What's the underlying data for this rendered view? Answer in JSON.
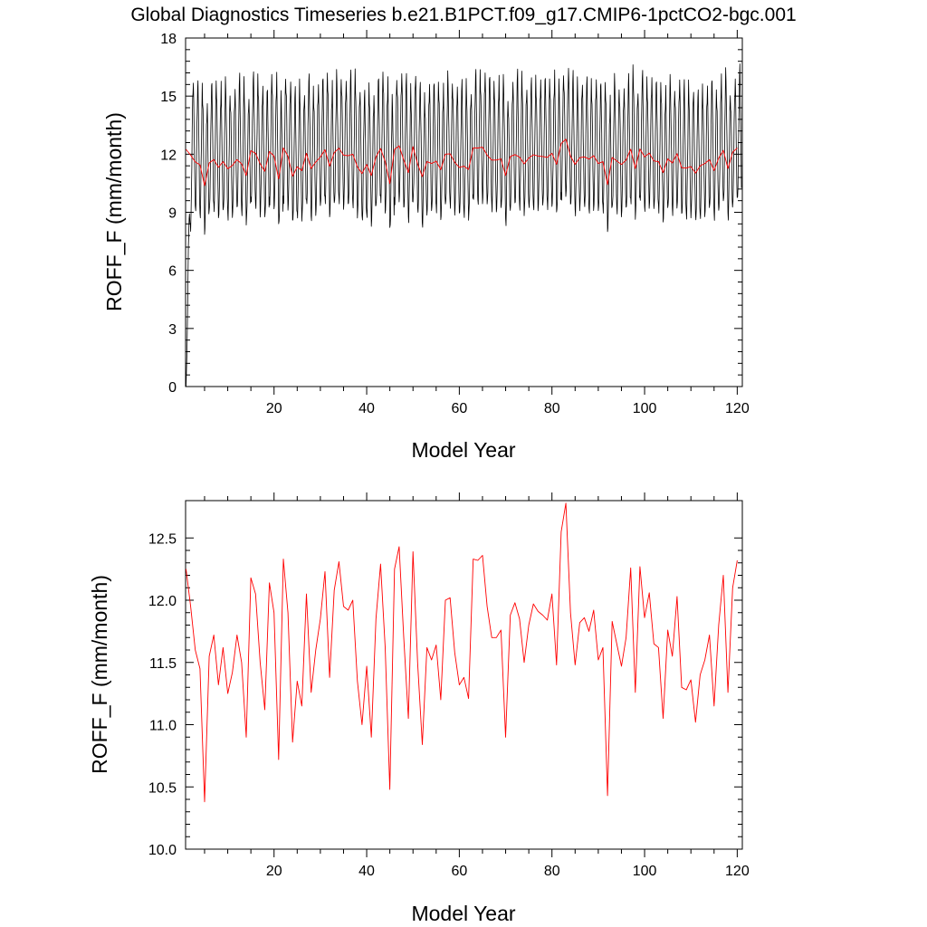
{
  "figure_title": "Global Diagnostics Timeseries b.e21.B1PCT.f09_g17.CMIP6-1pctCO2-bgc.001",
  "colors": {
    "monthly": "#000000",
    "annual": "#ff0000"
  },
  "chart_data": [
    {
      "type": "line",
      "title": "",
      "xlabel": "Model Year",
      "ylabel": "ROFF_F (mm/month)",
      "xlim": [
        0.9,
        121.1
      ],
      "ylim": [
        0,
        18
      ],
      "xticks": [
        20,
        40,
        60,
        80,
        100,
        120
      ],
      "yticks": [
        0,
        3,
        6,
        9,
        12,
        15,
        18
      ],
      "xtick_labels": [
        "20",
        "40",
        "60",
        "80",
        "100",
        "120"
      ],
      "ytick_labels": [
        "0",
        "3",
        "6",
        "9",
        "12",
        "15",
        "18"
      ],
      "grid": false,
      "series": [
        {
          "kind": "monthly",
          "x_start": 1.0,
          "x_step": 0.08333,
          "months_per_year": 12,
          "y_start": 0.0,
          "seasonal_low": 8.9,
          "seasonal_high": 15.2,
          "ramp_months": 22,
          "color": "#000000"
        },
        {
          "kind": "annual",
          "x_start": 1.0,
          "x_step": 1.0,
          "color": "#ff0000",
          "values_ref": "annual_mean"
        }
      ]
    },
    {
      "type": "line",
      "title": "",
      "xlabel": "Model Year",
      "ylabel": "ROFF_F (mm/month)",
      "xlim": [
        0.9,
        121.1
      ],
      "ylim": [
        10.0,
        12.8
      ],
      "xticks": [
        20,
        40,
        60,
        80,
        100,
        120
      ],
      "yticks": [
        10.0,
        10.5,
        11.0,
        11.5,
        12.0,
        12.5
      ],
      "xtick_labels": [
        "20",
        "40",
        "60",
        "80",
        "100",
        "120"
      ],
      "ytick_labels": [
        "10.0",
        "10.5",
        "11.0",
        "11.5",
        "12.0",
        "12.5"
      ],
      "grid": false,
      "series": [
        {
          "kind": "annual",
          "x_start": 1.0,
          "x_step": 1.0,
          "color": "#ff0000",
          "values_ref": "annual_mean"
        }
      ]
    }
  ],
  "annual_mean": [
    12.25,
    11.95,
    11.6,
    11.45,
    10.38,
    11.55,
    11.72,
    11.32,
    11.62,
    11.25,
    11.42,
    11.72,
    11.5,
    10.9,
    12.18,
    12.05,
    11.5,
    11.12,
    12.14,
    11.9,
    10.72,
    12.33,
    11.9,
    10.86,
    11.35,
    11.15,
    12.05,
    11.26,
    11.6,
    11.85,
    12.23,
    11.38,
    12.08,
    12.31,
    11.95,
    11.92,
    12.0,
    11.35,
    11.0,
    11.47,
    10.9,
    11.85,
    12.29,
    11.62,
    10.48,
    12.25,
    12.43,
    11.7,
    11.05,
    12.39,
    11.5,
    10.84,
    11.62,
    11.52,
    11.64,
    11.2,
    12.0,
    12.02,
    11.58,
    11.32,
    11.38,
    11.21,
    12.33,
    12.32,
    12.36,
    11.95,
    11.7,
    11.7,
    11.76,
    10.9,
    11.88,
    11.98,
    11.85,
    11.5,
    11.8,
    11.97,
    11.91,
    11.88,
    11.84,
    12.05,
    11.48,
    12.55,
    12.78,
    11.9,
    11.48,
    11.82,
    11.86,
    11.75,
    11.92,
    11.52,
    11.62,
    10.43,
    11.83,
    11.65,
    11.47,
    11.7,
    12.26,
    11.26,
    12.27,
    11.86,
    12.06,
    11.65,
    11.62,
    11.05,
    11.76,
    11.55,
    12.03,
    11.3,
    11.28,
    11.36,
    11.02,
    11.4,
    11.52,
    11.72,
    11.15,
    11.8,
    12.2,
    11.26,
    12.1,
    12.32
  ]
}
